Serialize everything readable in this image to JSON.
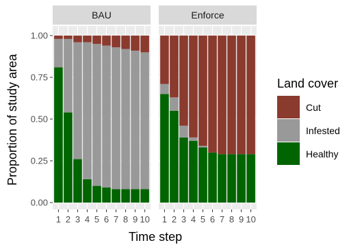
{
  "chart_data": {
    "type": "bar",
    "stacked": true,
    "facets": [
      {
        "name": "BAU",
        "x": [
          1,
          2,
          3,
          4,
          5,
          6,
          7,
          8,
          9,
          10
        ],
        "series": [
          {
            "name": "Healthy",
            "values": [
              0.81,
              0.54,
              0.26,
              0.14,
              0.1,
              0.09,
              0.08,
              0.08,
              0.08,
              0.08
            ]
          },
          {
            "name": "Infested",
            "values": [
              0.17,
              0.44,
              0.7,
              0.82,
              0.85,
              0.85,
              0.85,
              0.84,
              0.83,
              0.82
            ]
          },
          {
            "name": "Cut",
            "values": [
              0.02,
              0.02,
              0.04,
              0.04,
              0.05,
              0.06,
              0.07,
              0.08,
              0.09,
              0.1
            ]
          }
        ]
      },
      {
        "name": "Enforce",
        "x": [
          1,
          2,
          3,
          4,
          5,
          6,
          7,
          8,
          9,
          10
        ],
        "series": [
          {
            "name": "Healthy",
            "values": [
              0.65,
              0.55,
              0.39,
              0.37,
              0.33,
              0.3,
              0.29,
              0.29,
              0.29,
              0.29
            ]
          },
          {
            "name": "Infested",
            "values": [
              0.06,
              0.08,
              0.07,
              0.02,
              0.01,
              0.0,
              0.0,
              0.0,
              0.0,
              0.0
            ]
          },
          {
            "name": "Cut",
            "values": [
              0.29,
              0.37,
              0.54,
              0.61,
              0.66,
              0.7,
              0.71,
              0.71,
              0.71,
              0.71
            ]
          }
        ]
      }
    ],
    "xlabel": "Time step",
    "ylabel": "Proportion of study area",
    "ylim": [
      0,
      1
    ],
    "yticks": [
      "0.00",
      "0.25",
      "0.50",
      "0.75",
      "1.00"
    ],
    "xticks": [
      "1",
      "2",
      "3",
      "4",
      "5",
      "6",
      "7",
      "8",
      "9",
      "10"
    ],
    "legend": {
      "title": "Land cover",
      "position": "right",
      "items": [
        {
          "label": "Cut",
          "color": "#8b3a2e"
        },
        {
          "label": "Infested",
          "color": "#999999"
        },
        {
          "label": "Healthy",
          "color": "#006400"
        }
      ]
    },
    "colors": {
      "Cut": "#8b3a2e",
      "Infested": "#999999",
      "Healthy": "#006400"
    },
    "grid": true,
    "panel_background": "#ebebeb",
    "strip_background": "#d9d9d9"
  }
}
